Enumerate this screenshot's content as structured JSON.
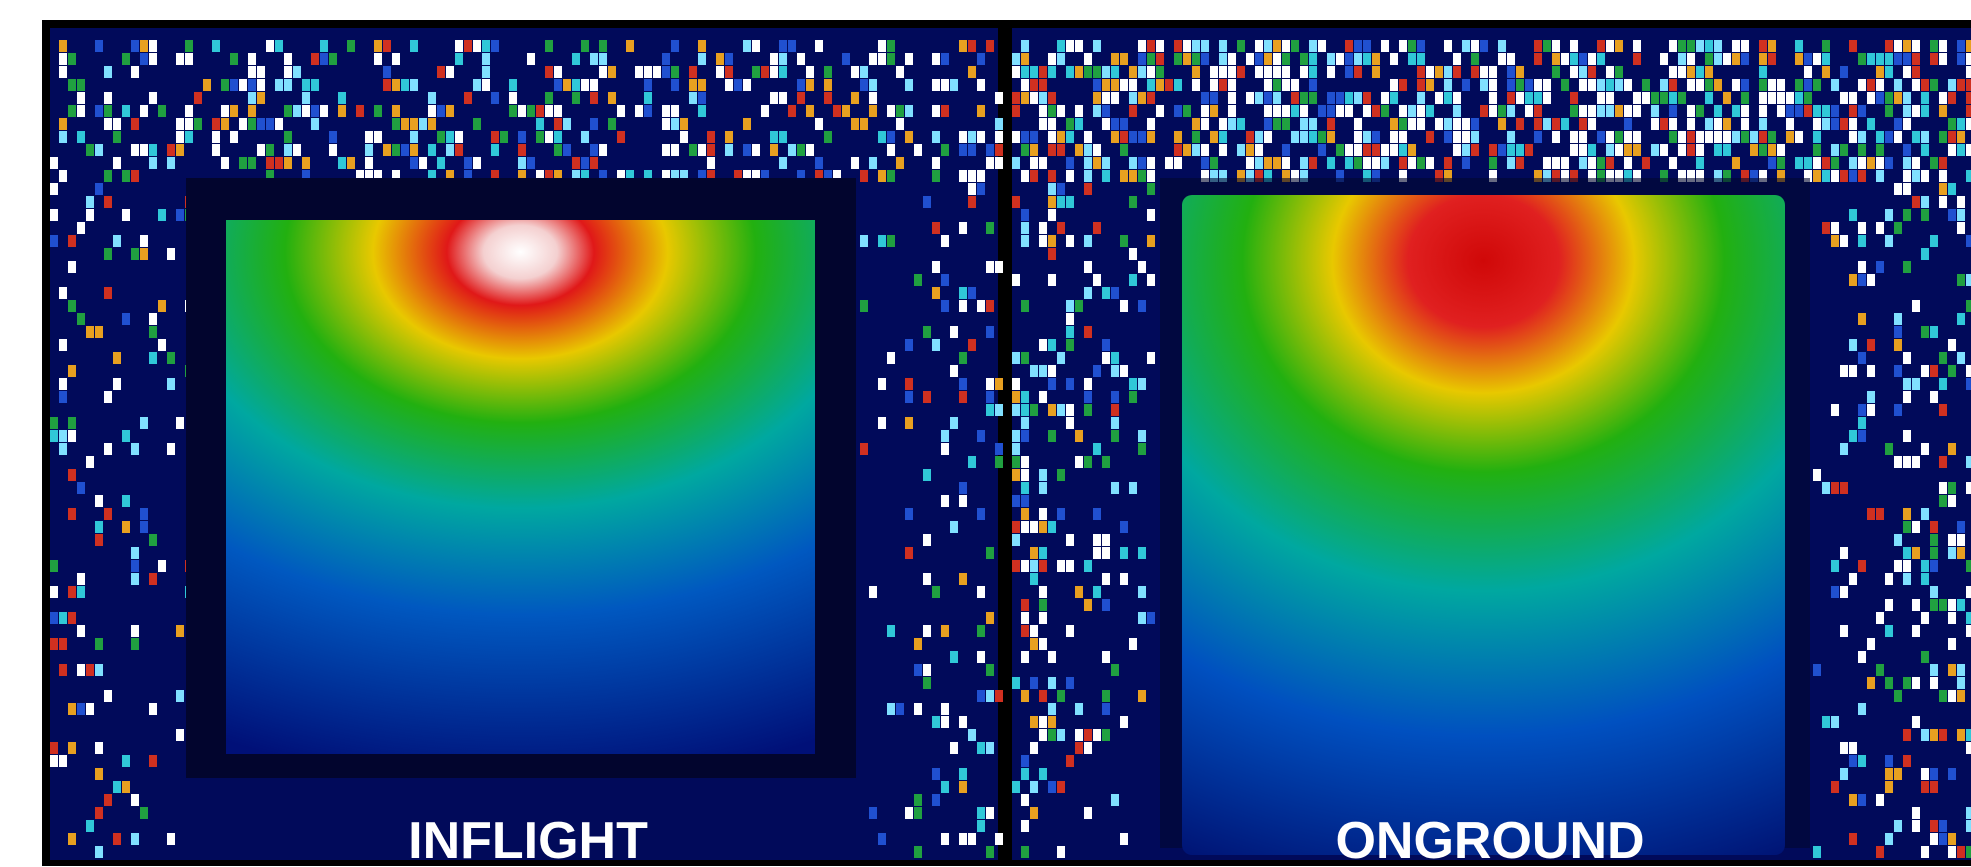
{
  "panels": [
    {
      "label": "INFLIGHT"
    },
    {
      "label": "ONGROUND"
    }
  ]
}
